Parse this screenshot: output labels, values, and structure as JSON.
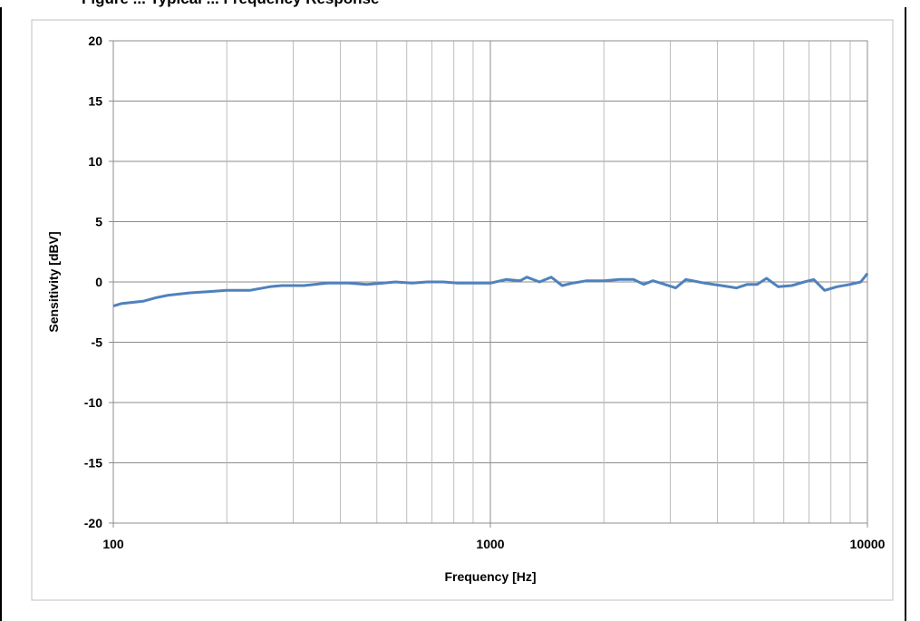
{
  "header": {
    "title_fragment": "Figure ... Typical ... Frequency Response"
  },
  "chart_data": {
    "type": "line",
    "title": "",
    "xlabel": "Frequency [Hz]",
    "ylabel": "Sensitivity [dBV]",
    "x_scale": "log",
    "xlim": [
      100,
      10000
    ],
    "ylim": [
      -20,
      20
    ],
    "x_ticks": [
      100,
      1000,
      10000
    ],
    "x_tick_labels": [
      "100",
      "1000",
      "10000"
    ],
    "y_ticks": [
      20,
      15,
      10,
      5,
      0,
      -5,
      -10,
      -15,
      -20
    ],
    "y_tick_labels": [
      "20",
      "15",
      "10",
      "5",
      "0",
      "-5",
      "-10",
      "-15",
      "-20"
    ],
    "grid": true,
    "legend": "none",
    "series_color": "#4f81bd",
    "series": [
      {
        "x": [
          100,
          105,
          120,
          130,
          140,
          160,
          180,
          200,
          230,
          260,
          280,
          320,
          370,
          420,
          470,
          520,
          560,
          620,
          680,
          750,
          820,
          900,
          1000,
          1100,
          1200,
          1250,
          1350,
          1450,
          1550,
          1650,
          1800,
          2000,
          2200,
          2400,
          2550,
          2700,
          2900,
          3100,
          3300,
          3700,
          4100,
          4500,
          4800,
          5100,
          5400,
          5800,
          6300,
          6800,
          7200,
          7700,
          8300,
          9000,
          9600,
          10000
        ],
        "y": [
          -2.0,
          -1.8,
          -1.6,
          -1.3,
          -1.1,
          -0.9,
          -0.8,
          -0.7,
          -0.7,
          -0.4,
          -0.3,
          -0.3,
          -0.1,
          -0.1,
          -0.2,
          -0.1,
          0.0,
          -0.1,
          0.0,
          0.0,
          -0.1,
          -0.1,
          -0.1,
          0.2,
          0.1,
          0.4,
          0.0,
          0.4,
          -0.3,
          -0.1,
          0.1,
          0.1,
          0.2,
          0.2,
          -0.2,
          0.1,
          -0.2,
          -0.5,
          0.2,
          -0.1,
          -0.3,
          -0.5,
          -0.2,
          -0.2,
          0.3,
          -0.4,
          -0.3,
          0.0,
          0.2,
          -0.7,
          -0.4,
          -0.2,
          0.0,
          0.7
        ]
      }
    ]
  }
}
